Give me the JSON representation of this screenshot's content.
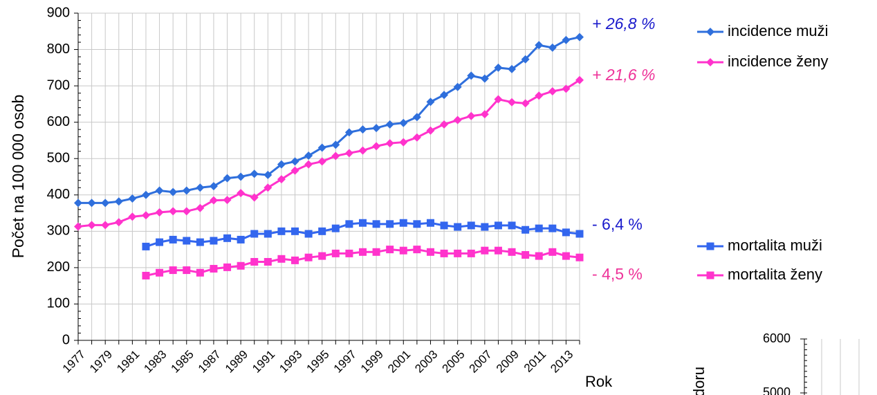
{
  "chart_data": [
    {
      "type": "line",
      "ylabel": "Počet na 100 000 osob",
      "xlabel": "Rok",
      "x": [
        1977,
        1978,
        1979,
        1980,
        1981,
        1982,
        1983,
        1984,
        1985,
        1986,
        1987,
        1988,
        1989,
        1990,
        1991,
        1992,
        1993,
        1994,
        1995,
        1996,
        1997,
        1998,
        1999,
        2000,
        2001,
        2002,
        2003,
        2004,
        2005,
        2006,
        2007,
        2008,
        2009,
        2010,
        2011,
        2012,
        2013,
        2014
      ],
      "xlim": [
        1977,
        2014
      ],
      "xticks": [
        1977,
        1979,
        1981,
        1983,
        1985,
        1987,
        1989,
        1991,
        1993,
        1995,
        1997,
        1999,
        2001,
        2003,
        2005,
        2007,
        2009,
        2011,
        2013
      ],
      "ylim": [
        0,
        900
      ],
      "yticks": [
        0,
        100,
        200,
        300,
        400,
        500,
        600,
        700,
        800,
        900
      ],
      "grid": true,
      "series": [
        {
          "name": "incidence muži",
          "color": "#2f6fdc",
          "marker": "diamond",
          "values": [
            378,
            378,
            378,
            382,
            390,
            400,
            412,
            408,
            412,
            420,
            424,
            446,
            450,
            458,
            455,
            484,
            492,
            508,
            530,
            538,
            572,
            580,
            584,
            594,
            598,
            614,
            656,
            675,
            697,
            728,
            720,
            750,
            746,
            773,
            812,
            805,
            826,
            834
          ]
        },
        {
          "name": "incidence ženy",
          "color": "#ff33cc",
          "marker": "diamond",
          "values": [
            313,
            317,
            317,
            325,
            340,
            344,
            352,
            355,
            355,
            364,
            385,
            386,
            405,
            393,
            420,
            443,
            467,
            484,
            492,
            507,
            515,
            522,
            534,
            542,
            545,
            558,
            577,
            594,
            606,
            617,
            622,
            663,
            655,
            652,
            673,
            685,
            692,
            716
          ]
        },
        {
          "name": "mortalita muži",
          "color": "#3366ee",
          "marker": "square",
          "values": [
            null,
            null,
            null,
            null,
            null,
            258,
            270,
            277,
            274,
            270,
            274,
            281,
            277,
            293,
            293,
            300,
            300,
            293,
            300,
            308,
            320,
            323,
            320,
            320,
            323,
            320,
            323,
            316,
            312,
            316,
            312,
            316,
            316,
            304,
            308,
            308,
            297,
            293
          ]
        },
        {
          "name": "mortalita ženy",
          "color": "#ff33cc",
          "marker": "square",
          "values": [
            null,
            null,
            null,
            null,
            null,
            178,
            186,
            193,
            193,
            186,
            197,
            201,
            205,
            216,
            216,
            224,
            220,
            228,
            232,
            239,
            239,
            243,
            243,
            250,
            247,
            250,
            243,
            239,
            239,
            239,
            247,
            247,
            243,
            235,
            232,
            243,
            232,
            228
          ]
        }
      ],
      "annotations": [
        {
          "text": "+ 26,8 %",
          "color": "#1a1acc",
          "italic": true
        },
        {
          "text": "+ 21,6 %",
          "color": "#ee3399",
          "italic": true
        },
        {
          "text": "- 6,4 %",
          "color": "#1a1acc",
          "italic": false
        },
        {
          "text": "- 4,5 %",
          "color": "#ee3399",
          "italic": false
        }
      ]
    },
    {
      "type": "line",
      "ylabel": "ádoru",
      "ylim": [
        5000,
        6000
      ],
      "yticks": [
        5000,
        6000
      ],
      "grid": true
    }
  ]
}
